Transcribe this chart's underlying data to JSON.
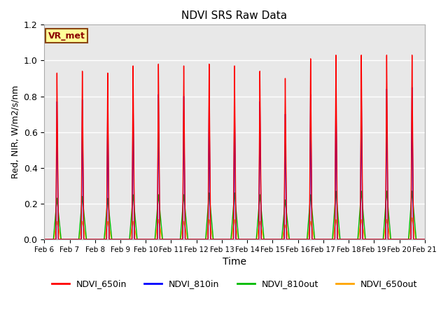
{
  "title": "NDVI SRS Raw Data",
  "xlabel": "Time",
  "ylabel": "Red, NIR, W/m2/s/nm",
  "ylim": [
    0.0,
    1.2
  ],
  "yticks": [
    0.0,
    0.2,
    0.4,
    0.6,
    0.8,
    1.0,
    1.2
  ],
  "bg_color": "#e8e8e8",
  "grid_color": "white",
  "annotation_text": "VR_met",
  "annotation_bg": "#ffff99",
  "annotation_border": "#8B4513",
  "colors": {
    "NDVI_650in": "#ff0000",
    "NDVI_810in": "#0000ff",
    "NDVI_810out": "#00bb00",
    "NDVI_650out": "#ffa500"
  },
  "peak_days": [
    6,
    7,
    8,
    9,
    10,
    11,
    12,
    13,
    14,
    15,
    16,
    17,
    18,
    19,
    20
  ],
  "peaks_650in": [
    0.93,
    0.94,
    0.93,
    0.97,
    0.98,
    0.97,
    0.98,
    0.97,
    0.94,
    0.9,
    1.01,
    1.03,
    1.03,
    1.03,
    1.03
  ],
  "peaks_810in": [
    0.77,
    0.78,
    0.77,
    0.8,
    0.81,
    0.8,
    0.8,
    0.8,
    0.77,
    0.7,
    0.81,
    0.84,
    0.84,
    0.84,
    0.85
  ],
  "peaks_810out": [
    0.23,
    0.24,
    0.23,
    0.25,
    0.25,
    0.25,
    0.26,
    0.26,
    0.25,
    0.22,
    0.25,
    0.27,
    0.27,
    0.27,
    0.27
  ],
  "peaks_650out": [
    0.1,
    0.1,
    0.1,
    0.1,
    0.11,
    0.1,
    0.11,
    0.11,
    0.1,
    0.08,
    0.1,
    0.11,
    0.11,
    0.11,
    0.12
  ],
  "xtick_labels": [
    "Feb 6",
    "Feb 7",
    "Feb 8",
    "Feb 9",
    "Feb 10",
    "Feb 11",
    "Feb 12",
    "Feb 13",
    "Feb 14",
    "Feb 15",
    "Feb 16",
    "Feb 17",
    "Feb 18",
    "Feb 19",
    "Feb 20",
    "Feb 21"
  ],
  "xtick_positions": [
    6,
    7,
    8,
    9,
    10,
    11,
    12,
    13,
    14,
    15,
    16,
    17,
    18,
    19,
    20,
    21
  ],
  "figsize": [
    6.4,
    4.8
  ],
  "dpi": 100
}
